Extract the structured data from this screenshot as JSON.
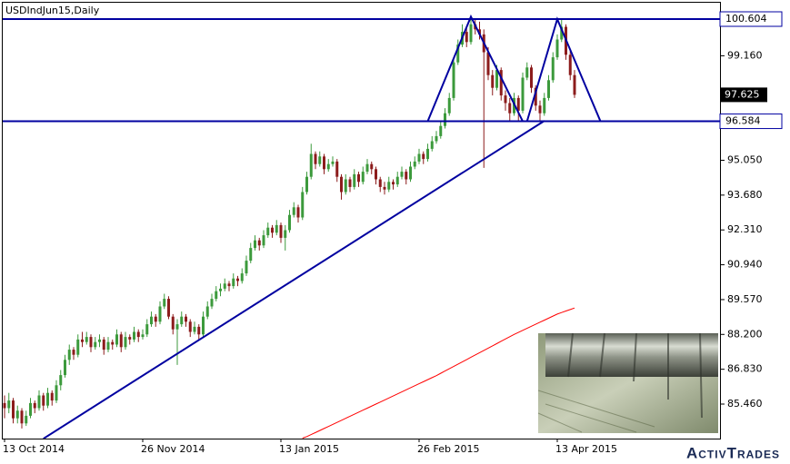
{
  "chart_data": {
    "type": "candlestick",
    "title": "USDIndJun15,Daily",
    "logo": "ActivTrades",
    "categories": [
      "13 Oct 2014",
      null,
      null,
      null,
      null,
      null,
      null,
      null,
      null,
      null,
      null,
      null,
      null,
      null,
      null,
      null,
      null,
      null,
      null,
      null,
      null,
      null,
      null,
      null,
      null,
      null,
      null,
      null,
      null,
      null,
      null,
      null,
      "26 Nov 2014",
      null,
      null,
      null,
      null,
      null,
      null,
      null,
      null,
      null,
      null,
      null,
      null,
      null,
      null,
      null,
      null,
      null,
      null,
      null,
      null,
      null,
      null,
      null,
      null,
      null,
      null,
      null,
      null,
      null,
      null,
      null,
      "13 Jan 2015",
      null,
      null,
      null,
      null,
      null,
      null,
      null,
      null,
      null,
      null,
      null,
      null,
      null,
      null,
      null,
      null,
      null,
      null,
      null,
      null,
      null,
      null,
      null,
      null,
      null,
      null,
      null,
      null,
      null,
      null,
      null,
      "26 Feb 2015",
      null,
      null,
      null,
      null,
      null,
      null,
      null,
      null,
      null,
      null,
      null,
      null,
      null,
      null,
      null,
      null,
      null,
      null,
      null,
      null,
      null,
      null,
      null,
      null,
      null,
      null,
      null,
      null,
      null,
      null,
      null,
      "13 Apr 2015",
      null,
      null,
      null,
      null
    ],
    "series": [
      {
        "type": "candlestick",
        "up_color": "#3c9a3c",
        "down_color": "#8c1c1c",
        "values": [
          [
            85.5,
            85.8,
            84.9,
            85.3
          ],
          [
            85.3,
            85.9,
            85.1,
            85.6
          ],
          [
            85.6,
            85.7,
            84.7,
            84.9
          ],
          [
            84.9,
            85.4,
            84.7,
            85.2
          ],
          [
            85.2,
            85.3,
            84.5,
            84.7
          ],
          [
            84.7,
            85.2,
            84.6,
            85.0
          ],
          [
            85.0,
            85.7,
            84.9,
            85.5
          ],
          [
            85.5,
            85.6,
            85.1,
            85.3
          ],
          [
            85.3,
            86.0,
            85.2,
            85.8
          ],
          [
            85.8,
            85.9,
            85.2,
            85.4
          ],
          [
            85.4,
            86.1,
            85.3,
            85.9
          ],
          [
            85.9,
            86.0,
            85.4,
            85.6
          ],
          [
            85.6,
            86.4,
            85.5,
            86.2
          ],
          [
            86.2,
            86.8,
            86.0,
            86.6
          ],
          [
            86.6,
            87.4,
            86.5,
            87.2
          ],
          [
            87.2,
            87.8,
            87.0,
            87.6
          ],
          [
            87.6,
            87.7,
            87.2,
            87.4
          ],
          [
            87.4,
            88.2,
            87.3,
            88.0
          ],
          [
            88.0,
            88.3,
            87.7,
            87.9
          ],
          [
            87.9,
            88.3,
            87.8,
            88.1
          ],
          [
            88.1,
            88.2,
            87.5,
            87.7
          ],
          [
            87.7,
            88.1,
            87.6,
            87.9
          ],
          [
            87.9,
            88.2,
            87.7,
            88.0
          ],
          [
            88.0,
            88.1,
            87.4,
            87.6
          ],
          [
            87.6,
            88.1,
            87.5,
            87.9
          ],
          [
            87.9,
            88.0,
            87.6,
            87.8
          ],
          [
            87.8,
            88.4,
            87.7,
            88.2
          ],
          [
            88.2,
            88.3,
            87.5,
            87.7
          ],
          [
            87.7,
            88.3,
            87.6,
            88.1
          ],
          [
            88.1,
            88.2,
            87.8,
            88.0
          ],
          [
            88.0,
            88.5,
            87.9,
            88.3
          ],
          [
            88.3,
            88.4,
            87.9,
            88.1
          ],
          [
            88.1,
            88.4,
            88.0,
            88.2
          ],
          [
            88.2,
            88.8,
            88.1,
            88.6
          ],
          [
            88.6,
            89.1,
            88.5,
            88.9
          ],
          [
            88.9,
            89.0,
            88.5,
            88.7
          ],
          [
            88.7,
            89.5,
            88.6,
            89.3
          ],
          [
            89.3,
            89.8,
            89.2,
            89.6
          ],
          [
            89.6,
            89.7,
            88.8,
            88.9
          ],
          [
            88.9,
            89.0,
            88.2,
            88.4
          ],
          [
            88.4,
            88.8,
            87.0,
            88.6
          ],
          [
            88.6,
            89.1,
            88.5,
            88.9
          ],
          [
            88.9,
            89.0,
            88.5,
            88.7
          ],
          [
            88.7,
            88.8,
            88.1,
            88.3
          ],
          [
            88.3,
            88.7,
            88.2,
            88.5
          ],
          [
            88.5,
            88.6,
            88.0,
            88.2
          ],
          [
            88.2,
            89.1,
            88.1,
            88.9
          ],
          [
            88.9,
            89.5,
            88.8,
            89.3
          ],
          [
            89.3,
            89.8,
            89.2,
            89.6
          ],
          [
            89.6,
            90.1,
            89.5,
            89.9
          ],
          [
            89.9,
            90.2,
            89.7,
            90.0
          ],
          [
            90.0,
            90.4,
            89.9,
            90.2
          ],
          [
            90.2,
            90.3,
            89.9,
            90.1
          ],
          [
            90.1,
            90.6,
            90.0,
            90.4
          ],
          [
            90.4,
            90.5,
            90.1,
            90.3
          ],
          [
            90.3,
            90.8,
            90.2,
            90.6
          ],
          [
            90.6,
            91.3,
            90.5,
            91.1
          ],
          [
            91.1,
            91.8,
            91.0,
            91.6
          ],
          [
            91.6,
            92.1,
            91.5,
            91.9
          ],
          [
            91.9,
            92.0,
            91.5,
            91.7
          ],
          [
            91.7,
            92.3,
            91.6,
            92.1
          ],
          [
            92.1,
            92.6,
            92.0,
            92.4
          ],
          [
            92.4,
            92.5,
            92.0,
            92.2
          ],
          [
            92.2,
            92.7,
            92.1,
            92.5
          ],
          [
            92.5,
            92.6,
            91.8,
            92.0
          ],
          [
            92.0,
            92.5,
            91.5,
            92.3
          ],
          [
            92.3,
            93.1,
            92.2,
            92.9
          ],
          [
            92.9,
            93.4,
            92.8,
            93.2
          ],
          [
            93.2,
            93.3,
            92.6,
            92.8
          ],
          [
            92.8,
            94.0,
            92.7,
            93.8
          ],
          [
            93.8,
            94.6,
            93.7,
            94.4
          ],
          [
            94.4,
            95.7,
            94.3,
            95.3
          ],
          [
            95.3,
            95.4,
            94.7,
            94.9
          ],
          [
            94.9,
            95.4,
            94.8,
            95.2
          ],
          [
            95.2,
            95.3,
            94.5,
            94.7
          ],
          [
            94.7,
            95.1,
            94.6,
            94.9
          ],
          [
            94.9,
            95.2,
            94.8,
            95.0
          ],
          [
            95.0,
            95.1,
            94.2,
            94.4
          ],
          [
            94.4,
            94.5,
            93.5,
            93.8
          ],
          [
            93.8,
            94.5,
            93.7,
            94.3
          ],
          [
            94.3,
            94.4,
            93.8,
            94.0
          ],
          [
            94.0,
            94.7,
            93.9,
            94.5
          ],
          [
            94.5,
            94.6,
            94.0,
            94.2
          ],
          [
            94.2,
            94.8,
            94.1,
            94.6
          ],
          [
            94.6,
            95.1,
            94.5,
            94.9
          ],
          [
            94.9,
            95.0,
            94.5,
            94.7
          ],
          [
            94.7,
            94.8,
            94.1,
            94.3
          ],
          [
            94.3,
            94.4,
            93.8,
            94.0
          ],
          [
            94.0,
            94.2,
            93.7,
            93.9
          ],
          [
            93.9,
            94.4,
            93.8,
            94.2
          ],
          [
            94.2,
            94.3,
            93.9,
            94.1
          ],
          [
            94.1,
            94.6,
            94.0,
            94.4
          ],
          [
            94.4,
            94.8,
            94.3,
            94.6
          ],
          [
            94.6,
            94.7,
            94.1,
            94.3
          ],
          [
            94.3,
            95.0,
            94.2,
            94.8
          ],
          [
            94.8,
            95.2,
            94.7,
            95.0
          ],
          [
            95.0,
            95.5,
            94.9,
            95.3
          ],
          [
            95.3,
            95.4,
            94.9,
            95.1
          ],
          [
            95.1,
            95.7,
            95.0,
            95.5
          ],
          [
            95.5,
            96.0,
            95.4,
            95.8
          ],
          [
            95.8,
            96.2,
            95.7,
            96.0
          ],
          [
            96.0,
            96.6,
            95.9,
            96.4
          ],
          [
            96.4,
            97.1,
            96.3,
            96.9
          ],
          [
            96.9,
            97.7,
            96.8,
            97.5
          ],
          [
            97.5,
            99.1,
            97.4,
            98.9
          ],
          [
            98.9,
            99.8,
            98.8,
            99.6
          ],
          [
            99.6,
            100.4,
            99.5,
            100.1
          ],
          [
            100.1,
            100.3,
            99.5,
            99.7
          ],
          [
            99.7,
            100.7,
            99.6,
            100.4
          ],
          [
            100.4,
            100.6,
            100.0,
            100.2
          ],
          [
            100.2,
            100.5,
            99.8,
            100.0
          ],
          [
            100.0,
            100.2,
            94.75,
            99.3
          ],
          [
            99.3,
            99.5,
            98.2,
            98.4
          ],
          [
            98.4,
            98.6,
            97.6,
            97.9
          ],
          [
            97.9,
            98.8,
            97.8,
            98.6
          ],
          [
            98.6,
            98.7,
            97.4,
            97.6
          ],
          [
            97.6,
            97.8,
            97.0,
            97.3
          ],
          [
            97.3,
            97.5,
            96.6,
            96.9
          ],
          [
            96.9,
            97.7,
            96.8,
            97.5
          ],
          [
            97.5,
            97.6,
            96.6,
            97.0
          ],
          [
            97.0,
            98.5,
            96.9,
            98.3
          ],
          [
            98.3,
            98.9,
            98.2,
            98.7
          ],
          [
            98.7,
            98.8,
            97.7,
            97.9
          ],
          [
            97.9,
            98.0,
            97.0,
            97.2
          ],
          [
            97.2,
            97.4,
            96.6,
            96.9
          ],
          [
            96.9,
            97.7,
            96.8,
            97.5
          ],
          [
            97.5,
            98.4,
            97.4,
            98.2
          ],
          [
            98.2,
            99.3,
            98.1,
            99.1
          ],
          [
            99.1,
            100.0,
            99.0,
            99.8
          ],
          [
            99.8,
            100.6,
            99.7,
            100.3
          ],
          [
            100.3,
            100.4,
            99.0,
            99.2
          ],
          [
            99.2,
            99.4,
            98.2,
            98.4
          ],
          [
            98.4,
            98.6,
            97.5,
            97.625
          ]
        ]
      },
      {
        "type": "line",
        "color": "#ff0000",
        "values": [
          null,
          null,
          null,
          null,
          null,
          null,
          null,
          null,
          null,
          null,
          null,
          null,
          null,
          null,
          null,
          null,
          null,
          null,
          null,
          null,
          null,
          null,
          null,
          null,
          null,
          null,
          null,
          null,
          null,
          null,
          null,
          null,
          null,
          null,
          null,
          null,
          null,
          null,
          null,
          null,
          null,
          null,
          null,
          null,
          null,
          null,
          null,
          null,
          null,
          null,
          null,
          null,
          null,
          null,
          null,
          null,
          null,
          null,
          null,
          null,
          null,
          null,
          null,
          null,
          null,
          null,
          null,
          null,
          null,
          84.12,
          84.18,
          84.26,
          84.34,
          84.42,
          84.5,
          84.58,
          84.66,
          84.74,
          84.82,
          84.9,
          84.98,
          85.06,
          85.14,
          85.22,
          85.3,
          85.38,
          85.46,
          85.54,
          85.62,
          85.7,
          85.78,
          85.86,
          85.94,
          86.02,
          86.1,
          86.18,
          86.26,
          86.34,
          86.42,
          86.5,
          86.58,
          86.67,
          86.76,
          86.85,
          86.94,
          87.03,
          87.12,
          87.21,
          87.3,
          87.39,
          87.48,
          87.57,
          87.66,
          87.75,
          87.84,
          87.93,
          88.02,
          88.11,
          88.2,
          88.28,
          88.36,
          88.44,
          88.52,
          88.6,
          88.68,
          88.76,
          88.84,
          88.92,
          89.0,
          89.06,
          89.12,
          89.18,
          89.24
        ]
      }
    ],
    "ylim": [
      84.103,
      101.247
    ],
    "yticks": [
      {
        "value": 85.46,
        "label": "85.460"
      },
      {
        "value": 86.83,
        "label": "86.830"
      },
      {
        "value": 88.2,
        "label": "88.200"
      },
      {
        "value": 89.57,
        "label": "89.570"
      },
      {
        "value": 90.94,
        "label": "90.940"
      },
      {
        "value": 92.31,
        "label": "92.310"
      },
      {
        "value": 93.68,
        "label": "93.680"
      },
      {
        "value": 95.05,
        "label": "95.050"
      },
      {
        "value": 99.16,
        "label": "99.160"
      }
    ],
    "grid": false,
    "hlines": [
      100.604,
      96.584
    ],
    "last_price": 97.625,
    "line_color": "#0000a0",
    "trendlines": [
      {
        "x": [
          9,
          125
        ],
        "y": [
          84.1,
          96.6
        ]
      },
      {
        "x": [
          98,
          108,
          120
        ],
        "y": [
          96.584,
          100.7,
          96.584
        ]
      },
      {
        "x": [
          121,
          128,
          138
        ],
        "y": [
          96.584,
          100.6,
          96.584
        ]
      }
    ]
  }
}
